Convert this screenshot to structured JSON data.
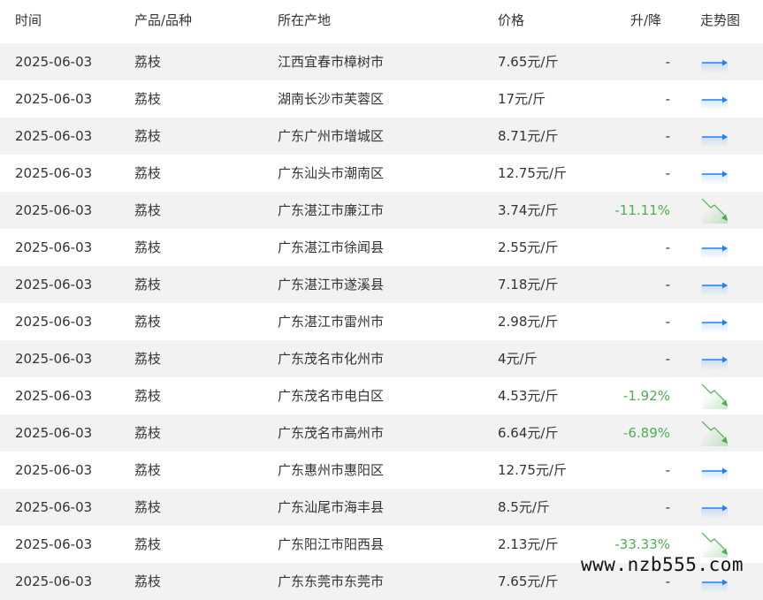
{
  "header": {
    "time": "时间",
    "product": "产品/品种",
    "location": "所在产地",
    "price": "价格",
    "change": "升/降",
    "trend": "走势图"
  },
  "colors": {
    "down": "#4caf50",
    "flat_arrow": "#1e7fff",
    "row_alt": "#f2f2f2"
  },
  "rows": [
    {
      "time": "2025-06-03",
      "product": "荔枝",
      "location": "江西宜春市樟树市",
      "price": "7.65元/斤",
      "change": "-",
      "trend": "flat-arrow-icon"
    },
    {
      "time": "2025-06-03",
      "product": "荔枝",
      "location": "湖南长沙市芙蓉区",
      "price": "17元/斤",
      "change": "-",
      "trend": "flat-arrow-icon"
    },
    {
      "time": "2025-06-03",
      "product": "荔枝",
      "location": "广东广州市增城区",
      "price": "8.71元/斤",
      "change": "-",
      "trend": "flat-arrow-icon"
    },
    {
      "time": "2025-06-03",
      "product": "荔枝",
      "location": "广东汕头市潮南区",
      "price": "12.75元/斤",
      "change": "-",
      "trend": "flat-arrow-icon"
    },
    {
      "time": "2025-06-03",
      "product": "荔枝",
      "location": "广东湛江市廉江市",
      "price": "3.74元/斤",
      "change": "-11.11%",
      "trend": "down-trend-icon"
    },
    {
      "time": "2025-06-03",
      "product": "荔枝",
      "location": "广东湛江市徐闻县",
      "price": "2.55元/斤",
      "change": "-",
      "trend": "flat-arrow-icon"
    },
    {
      "time": "2025-06-03",
      "product": "荔枝",
      "location": "广东湛江市遂溪县",
      "price": "7.18元/斤",
      "change": "-",
      "trend": "flat-arrow-icon"
    },
    {
      "time": "2025-06-03",
      "product": "荔枝",
      "location": "广东湛江市雷州市",
      "price": "2.98元/斤",
      "change": "-",
      "trend": "flat-arrow-icon"
    },
    {
      "time": "2025-06-03",
      "product": "荔枝",
      "location": "广东茂名市化州市",
      "price": "4元/斤",
      "change": "-",
      "trend": "flat-arrow-icon"
    },
    {
      "time": "2025-06-03",
      "product": "荔枝",
      "location": "广东茂名市电白区",
      "price": "4.53元/斤",
      "change": "-1.92%",
      "trend": "down-trend-icon"
    },
    {
      "time": "2025-06-03",
      "product": "荔枝",
      "location": "广东茂名市高州市",
      "price": "6.64元/斤",
      "change": "-6.89%",
      "trend": "down-trend-icon"
    },
    {
      "time": "2025-06-03",
      "product": "荔枝",
      "location": "广东惠州市惠阳区",
      "price": "12.75元/斤",
      "change": "-",
      "trend": "flat-arrow-icon"
    },
    {
      "time": "2025-06-03",
      "product": "荔枝",
      "location": "广东汕尾市海丰县",
      "price": "8.5元/斤",
      "change": "-",
      "trend": "flat-arrow-icon"
    },
    {
      "time": "2025-06-03",
      "product": "荔枝",
      "location": "广东阳江市阳西县",
      "price": "2.13元/斤",
      "change": "-33.33%",
      "trend": "down-trend-icon"
    },
    {
      "time": "2025-06-03",
      "product": "荔枝",
      "location": "广东东莞市东莞市",
      "price": "7.65元/斤",
      "change": "-",
      "trend": "flat-arrow-icon"
    }
  ],
  "watermark": "www.nzb555.com"
}
